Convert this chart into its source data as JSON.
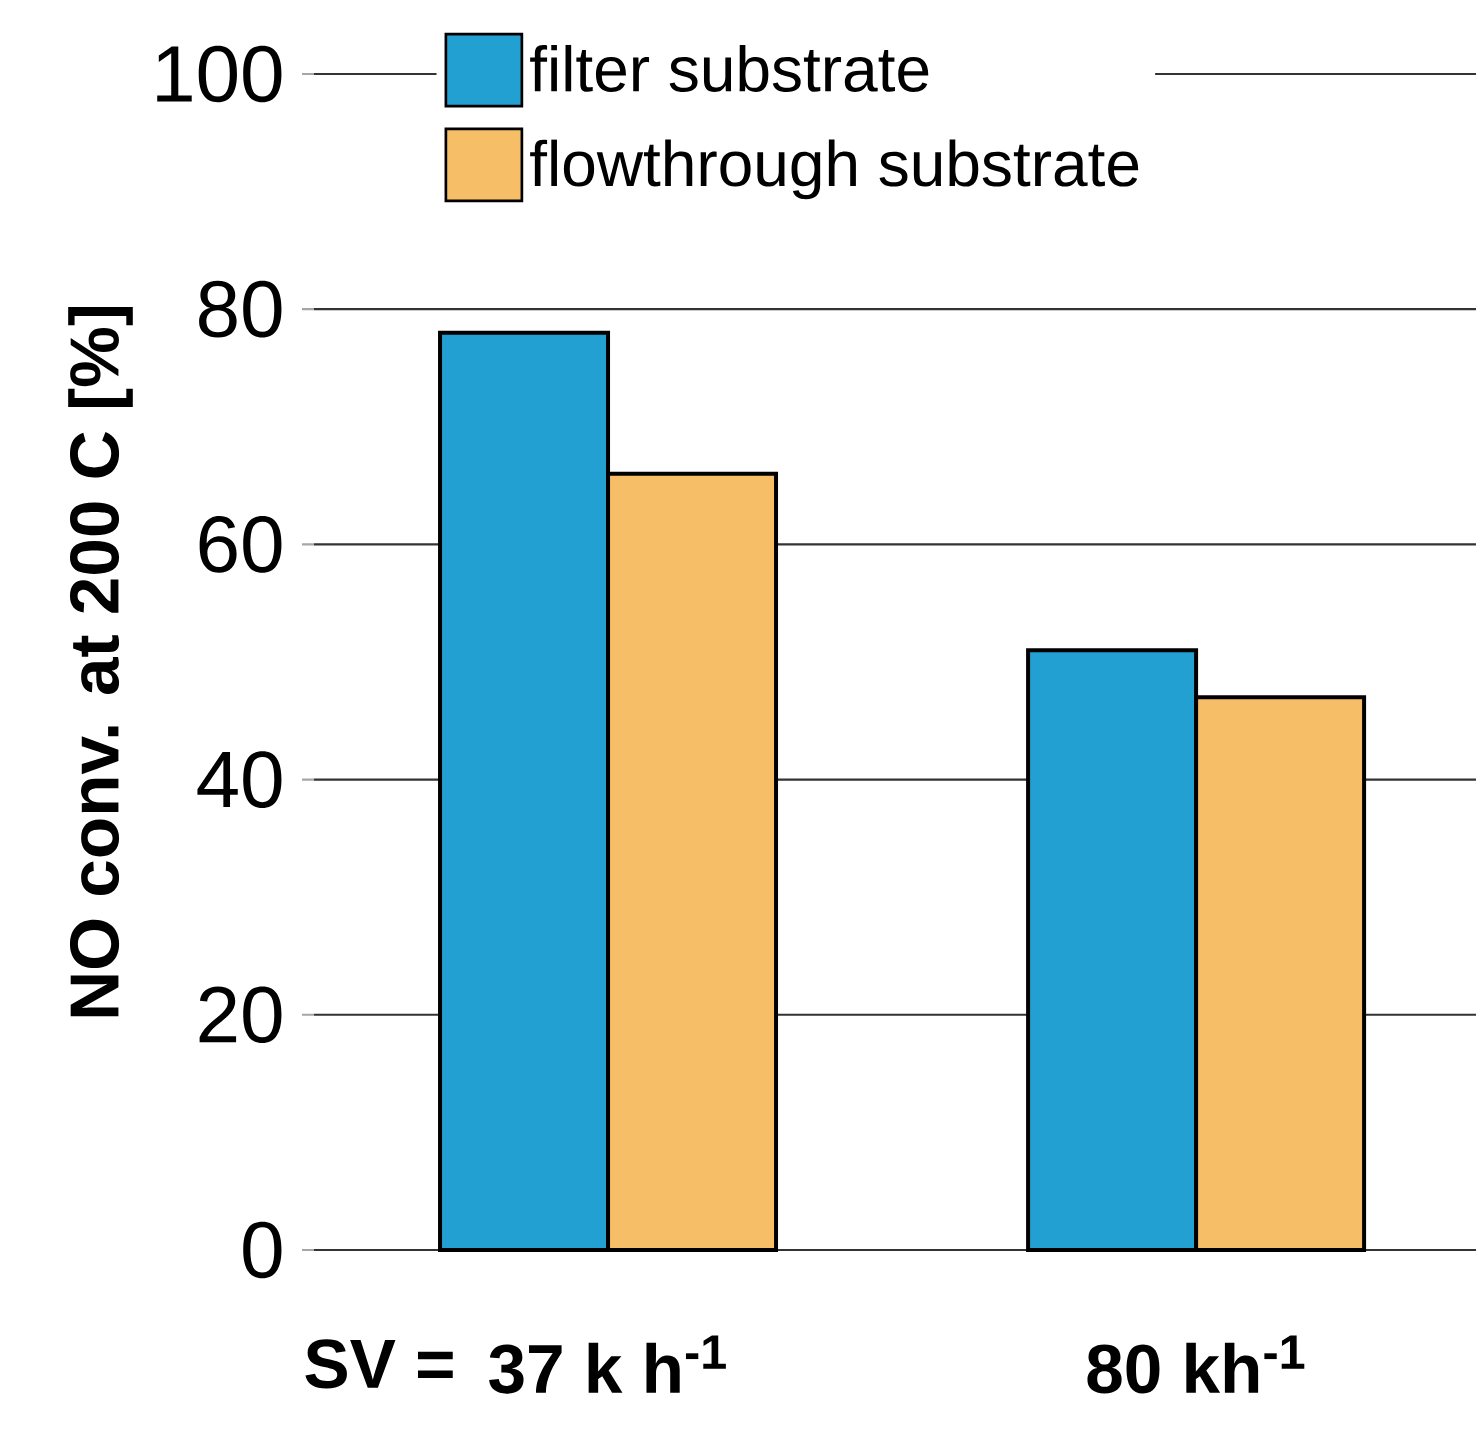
{
  "chart_data": {
    "type": "bar",
    "xlabel": "SV =",
    "ylabel": "NO conv. at 200  C [%]",
    "categories": [
      "37 k h$^{-1}$",
      "80 kh$^{-1}$"
    ],
    "series": [
      {
        "name": "filter substrate",
        "color": "#22a0d2",
        "values": [
          78,
          51
        ]
      },
      {
        "name": "flowthrough substrate",
        "color": "#f6be67",
        "values": [
          66,
          47
        ]
      }
    ],
    "ylim": [
      0,
      100
    ],
    "yticks": [
      0,
      20,
      40,
      60,
      80,
      100
    ],
    "grid": "y",
    "legend": "top left"
  }
}
